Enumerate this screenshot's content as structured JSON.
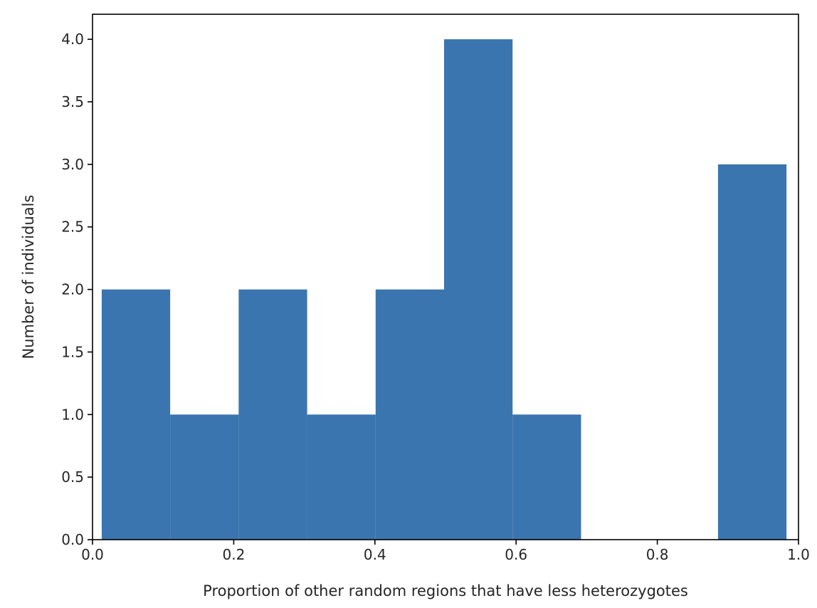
{
  "chart_data": {
    "type": "bar",
    "subtype": "histogram",
    "title": "",
    "xlabel": "Proportion of other random regions that have less heterozygotes",
    "ylabel": "Number of individuals",
    "xlim": [
      0.0,
      1.0
    ],
    "ylim": [
      0.0,
      4.2
    ],
    "bin_edges": [
      0.013,
      0.11,
      0.207,
      0.304,
      0.401,
      0.498,
      0.595,
      0.692,
      0.789,
      0.886,
      0.983
    ],
    "values": [
      2,
      1,
      2,
      1,
      2,
      4,
      1,
      0,
      0,
      3
    ],
    "bar_color": "#3a75af",
    "grid": false,
    "legend": "none",
    "x_ticks": [
      {
        "value": 0.0,
        "label": "0.0"
      },
      {
        "value": 0.2,
        "label": "0.2"
      },
      {
        "value": 0.4,
        "label": "0.4"
      },
      {
        "value": 0.6,
        "label": "0.6"
      },
      {
        "value": 0.8,
        "label": "0.8"
      },
      {
        "value": 1.0,
        "label": "1.0"
      }
    ],
    "y_ticks": [
      {
        "value": 0.0,
        "label": "0.0"
      },
      {
        "value": 0.5,
        "label": "0.5"
      },
      {
        "value": 1.0,
        "label": "1.0"
      },
      {
        "value": 1.5,
        "label": "1.5"
      },
      {
        "value": 2.0,
        "label": "2.0"
      },
      {
        "value": 2.5,
        "label": "2.5"
      },
      {
        "value": 3.0,
        "label": "3.0"
      },
      {
        "value": 3.5,
        "label": "3.5"
      },
      {
        "value": 4.0,
        "label": "4.0"
      }
    ]
  }
}
